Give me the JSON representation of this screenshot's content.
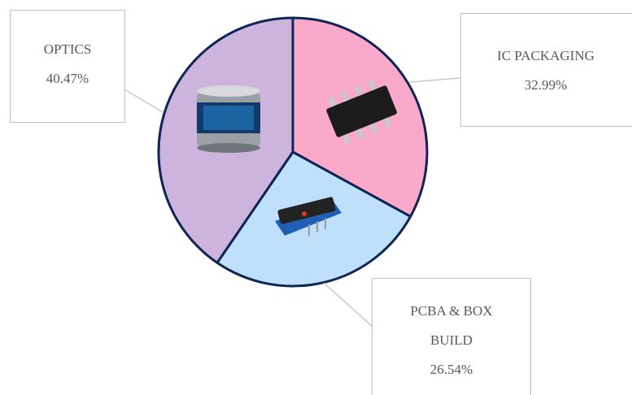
{
  "chart_data": {
    "type": "pie",
    "categories": [
      "IC PACKAGING",
      "PCBA & BOX BUILD",
      "OPTICS"
    ],
    "values": [
      32.99,
      26.54,
      40.47
    ],
    "value_labels": [
      "32.99%",
      "26.54%",
      "40.47%"
    ],
    "colors": [
      "#f9a9c9",
      "#bfe0fb",
      "#cdb4dd"
    ],
    "edge_color": "#0e2456"
  }
}
